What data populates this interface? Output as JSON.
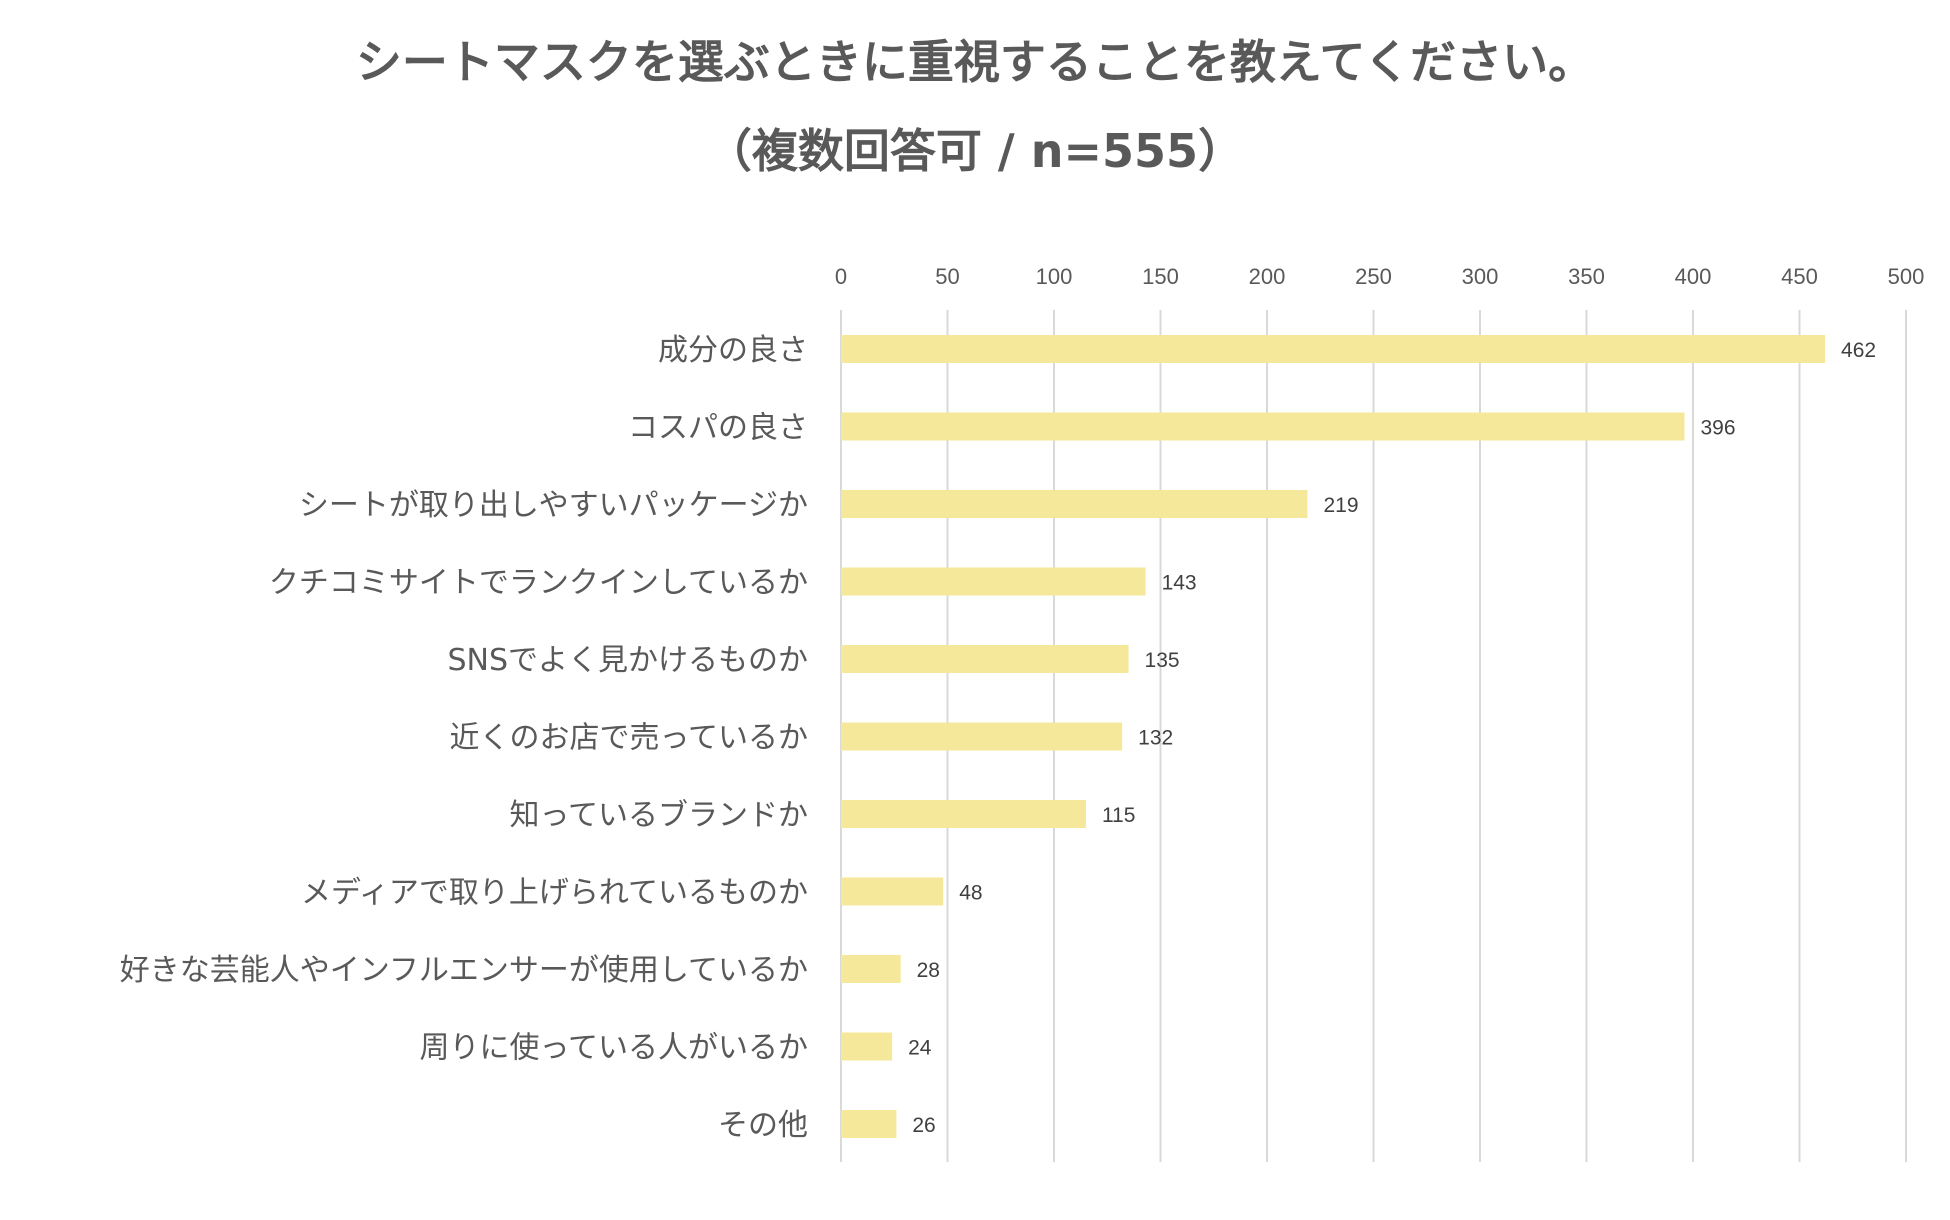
{
  "chart_data": {
    "type": "bar",
    "orientation": "horizontal",
    "title": "シートマスクを選ぶときに重視することを教えてください。",
    "subtitle": "（複数回答可 / n=555）",
    "categories": [
      "成分の良さ",
      "コスパの良さ",
      "シートが取り出しやすいパッケージか",
      "クチコミサイトでランクインしているか",
      "SNSでよく見かけるものか",
      "近くのお店で売っているか",
      "知っているブランドか",
      "メディアで取り上げられているものか",
      "好きな芸能人やインフルエンサーが使用しているか",
      "周りに使っている人がいるか",
      "その他"
    ],
    "values": [
      462,
      396,
      219,
      143,
      135,
      132,
      115,
      48,
      28,
      24,
      26
    ],
    "xlim": [
      0,
      500
    ],
    "xticks": [
      0,
      50,
      100,
      150,
      200,
      250,
      300,
      350,
      400,
      450,
      500
    ],
    "x_axis_position": "top",
    "grid": true,
    "bar_color": "#f6e89a",
    "xlabel": "",
    "ylabel": ""
  }
}
